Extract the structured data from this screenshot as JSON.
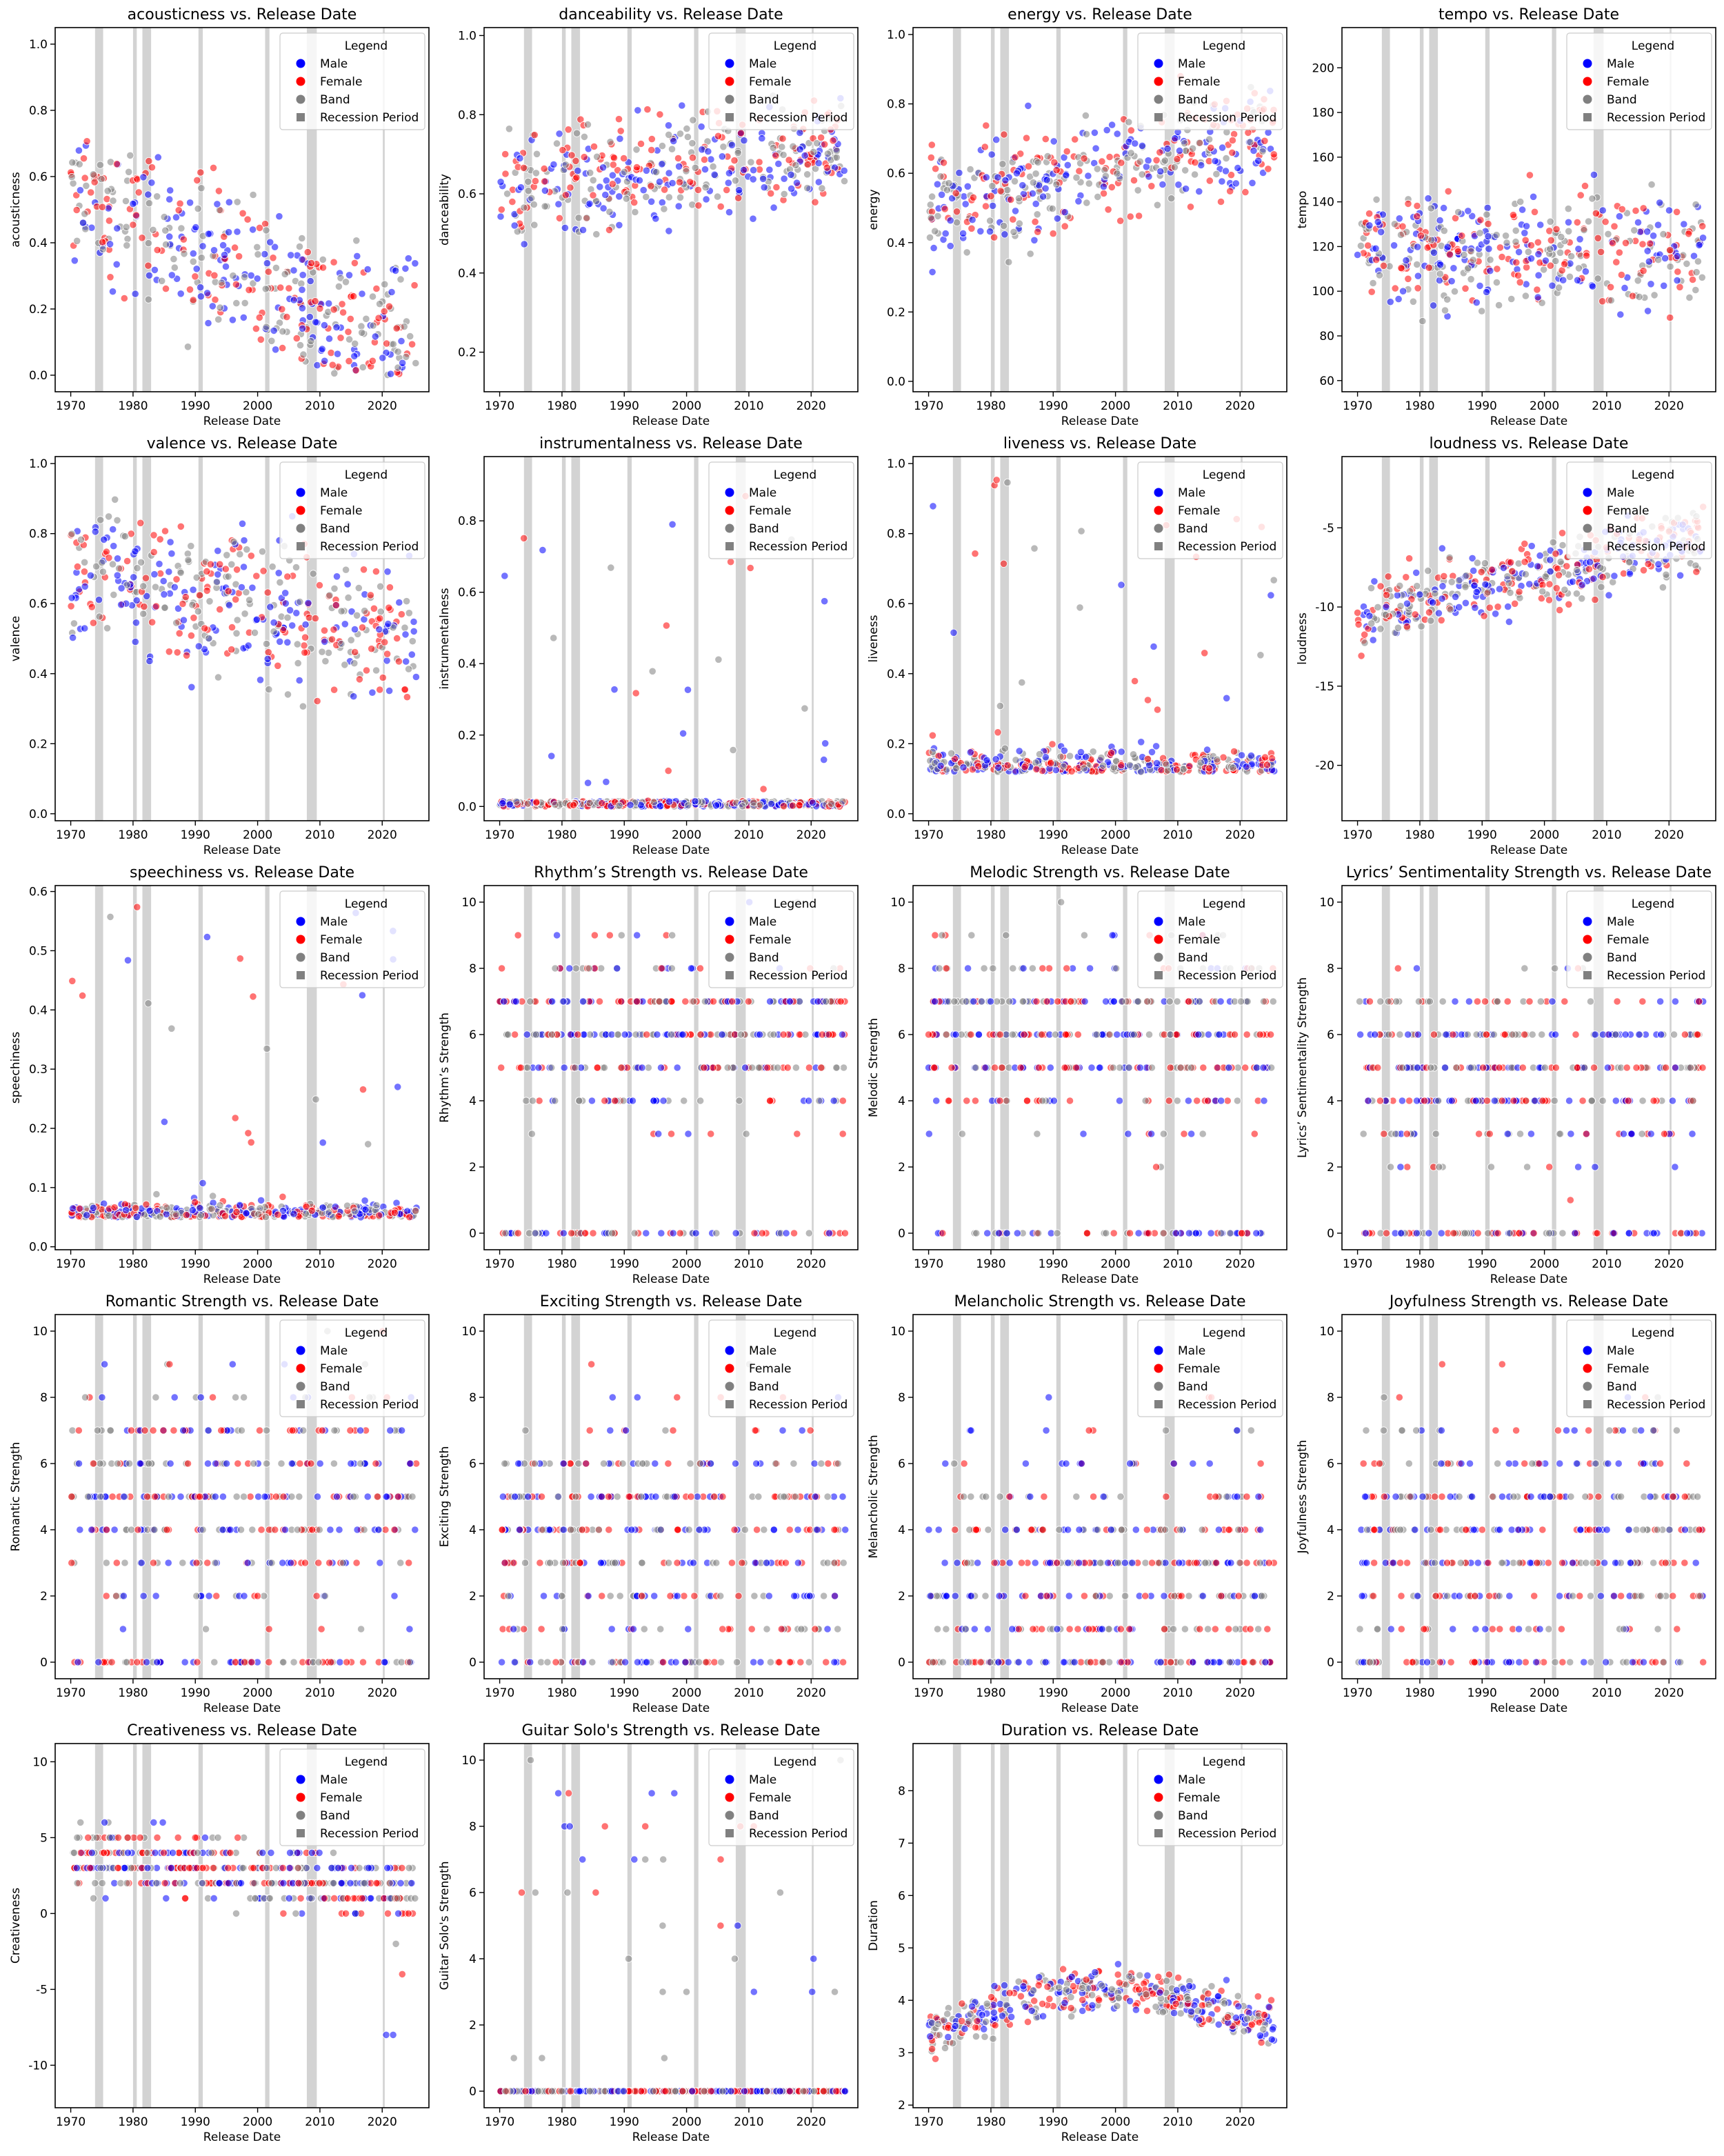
{
  "legend": {
    "title": "Legend",
    "entries": [
      {
        "label": "Male",
        "color": "#0000ff",
        "marker": "circle"
      },
      {
        "label": "Female",
        "color": "#ff0000",
        "marker": "circle"
      },
      {
        "label": "Band",
        "color": "#808080",
        "marker": "circle"
      },
      {
        "label": "Recession Period",
        "color": "#808080",
        "marker": "square"
      }
    ],
    "placement": "top-right"
  },
  "series_colors": {
    "Male": "#0000ff",
    "Female": "#ff0000",
    "Band": "#808080"
  },
  "recession_periods": [
    [
      1973.9,
      1975.2
    ],
    [
      1980.0,
      1980.6
    ],
    [
      1981.5,
      1982.9
    ],
    [
      1990.5,
      1991.2
    ],
    [
      2001.2,
      2001.9
    ],
    [
      2007.9,
      2009.5
    ],
    [
      2020.1,
      2020.4
    ]
  ],
  "chart_data": [
    {
      "type": "scatter",
      "title": "acousticness vs. Release Date",
      "xlabel": "Release Date",
      "ylabel": "acousticness",
      "xlim": [
        1967.5,
        2027.5
      ],
      "ylim": [
        -0.05,
        1.05
      ],
      "xticks": [
        1970,
        1980,
        1990,
        2000,
        2010,
        2020
      ],
      "yticks": [
        0.0,
        0.2,
        0.4,
        0.6,
        0.8,
        1.0
      ],
      "tick_decimals": 1,
      "series": [
        "Male",
        "Female",
        "Band"
      ],
      "profile": {
        "kind": "decay",
        "hi": 0.55,
        "lo": 0.08,
        "min": 0.0,
        "max": 0.99,
        "spread": 0.25
      }
    },
    {
      "type": "scatter",
      "title": "danceability vs. Release Date",
      "xlabel": "Release Date",
      "ylabel": "danceability",
      "xlim": [
        1967.5,
        2027.5
      ],
      "ylim": [
        0.1,
        1.02
      ],
      "xticks": [
        1970,
        1980,
        1990,
        2000,
        2010,
        2020
      ],
      "yticks": [
        0.2,
        0.4,
        0.6,
        0.8,
        1.0
      ],
      "tick_decimals": 1,
      "series": [
        "Male",
        "Female",
        "Band"
      ],
      "profile": {
        "kind": "rise",
        "hi": 0.72,
        "lo": 0.6,
        "min": 0.15,
        "max": 0.98,
        "spread": 0.14
      }
    },
    {
      "type": "scatter",
      "title": "energy vs. Release Date",
      "xlabel": "Release Date",
      "ylabel": "energy",
      "xlim": [
        1967.5,
        2027.5
      ],
      "ylim": [
        -0.03,
        1.02
      ],
      "xticks": [
        1970,
        1980,
        1990,
        2000,
        2010,
        2020
      ],
      "yticks": [
        0.0,
        0.2,
        0.4,
        0.6,
        0.8,
        1.0
      ],
      "tick_decimals": 1,
      "series": [
        "Male",
        "Female",
        "Band"
      ],
      "profile": {
        "kind": "rise",
        "hi": 0.72,
        "lo": 0.5,
        "min": 0.02,
        "max": 0.98,
        "spread": 0.17
      }
    },
    {
      "type": "scatter",
      "title": "tempo vs. Release Date",
      "xlabel": "Release Date",
      "ylabel": "tempo",
      "xlim": [
        1967.5,
        2027.5
      ],
      "ylim": [
        55,
        218
      ],
      "xticks": [
        1970,
        1980,
        1990,
        2000,
        2010,
        2020
      ],
      "yticks": [
        60,
        80,
        100,
        120,
        140,
        160,
        180,
        200
      ],
      "tick_decimals": 0,
      "series": [
        "Male",
        "Female",
        "Band"
      ],
      "profile": {
        "kind": "flat",
        "hi": 118,
        "lo": 118,
        "min": 62,
        "max": 210,
        "spread": 26
      }
    },
    {
      "type": "scatter",
      "title": "valence vs. Release Date",
      "xlabel": "Release Date",
      "ylabel": "valence",
      "xlim": [
        1967.5,
        2027.5
      ],
      "ylim": [
        -0.02,
        1.02
      ],
      "xticks": [
        1970,
        1980,
        1990,
        2000,
        2010,
        2020
      ],
      "yticks": [
        0.0,
        0.2,
        0.4,
        0.6,
        0.8,
        1.0
      ],
      "tick_decimals": 1,
      "series": [
        "Male",
        "Female",
        "Band"
      ],
      "profile": {
        "kind": "decay",
        "hi": 0.7,
        "lo": 0.5,
        "min": 0.03,
        "max": 0.98,
        "spread": 0.22
      }
    },
    {
      "type": "scatter",
      "title": "instrumentalness vs. Release Date",
      "xlabel": "Release Date",
      "ylabel": "instrumentalness",
      "xlim": [
        1967.5,
        2027.5
      ],
      "ylim": [
        -0.04,
        0.98
      ],
      "xticks": [
        1970,
        1980,
        1990,
        2000,
        2010,
        2020
      ],
      "yticks": [
        0.0,
        0.2,
        0.4,
        0.6,
        0.8
      ],
      "tick_decimals": 1,
      "series": [
        "Male",
        "Female",
        "Band"
      ],
      "profile": {
        "kind": "sparse",
        "hi": 0.0,
        "lo": 0.0,
        "min": 0.0,
        "max": 0.93,
        "spread": 0.02
      }
    },
    {
      "type": "scatter",
      "title": "liveness vs. Release Date",
      "xlabel": "Release Date",
      "ylabel": "liveness",
      "xlim": [
        1967.5,
        2027.5
      ],
      "ylim": [
        -0.02,
        1.02
      ],
      "xticks": [
        1970,
        1980,
        1990,
        2000,
        2010,
        2020
      ],
      "yticks": [
        0.0,
        0.2,
        0.4,
        0.6,
        0.8,
        1.0
      ],
      "tick_decimals": 1,
      "series": [
        "Male",
        "Female",
        "Band"
      ],
      "profile": {
        "kind": "low",
        "hi": 0.12,
        "lo": 0.12,
        "min": 0.02,
        "max": 0.96,
        "spread": 0.07
      }
    },
    {
      "type": "scatter",
      "title": "loudness vs. Release Date",
      "xlabel": "Release Date",
      "ylabel": "loudness",
      "xlim": [
        1967.5,
        2027.5
      ],
      "ylim": [
        -23.5,
        -0.5
      ],
      "xticks": [
        1970,
        1980,
        1990,
        2000,
        2010,
        2020
      ],
      "yticks": [
        -20,
        -15,
        -10,
        -5
      ],
      "tick_decimals": 0,
      "series": [
        "Male",
        "Female",
        "Band"
      ],
      "profile": {
        "kind": "rise",
        "hi": -5.5,
        "lo": -10.5,
        "min": -22.5,
        "max": -2.0,
        "spread": 2.4
      }
    },
    {
      "type": "scatter",
      "title": "speechiness vs. Release Date",
      "xlabel": "Release Date",
      "ylabel": "speechiness",
      "xlim": [
        1967.5,
        2027.5
      ],
      "ylim": [
        -0.005,
        0.61
      ],
      "xticks": [
        1970,
        1980,
        1990,
        2000,
        2010,
        2020
      ],
      "yticks": [
        0.0,
        0.1,
        0.2,
        0.3,
        0.4,
        0.5,
        0.6
      ],
      "tick_decimals": 1,
      "series": [
        "Male",
        "Female",
        "Band"
      ],
      "profile": {
        "kind": "low",
        "hi": 0.05,
        "lo": 0.05,
        "min": 0.02,
        "max": 0.58,
        "spread": 0.03
      }
    },
    {
      "type": "scatter",
      "title": "Rhythm’s Strength vs. Release Date",
      "xlabel": "Release Date",
      "ylabel": "Rhythm’s Strength",
      "xlim": [
        1967.5,
        2027.5
      ],
      "ylim": [
        -0.5,
        10.5
      ],
      "xticks": [
        1970,
        1980,
        1990,
        2000,
        2010,
        2020
      ],
      "yticks": [
        0,
        2,
        4,
        6,
        8,
        10
      ],
      "tick_decimals": 0,
      "series": [
        "Male",
        "Female",
        "Band"
      ],
      "profile": {
        "kind": "int",
        "hi": 6,
        "lo": 6,
        "min": 0,
        "max": 10,
        "spread": 3
      }
    },
    {
      "type": "scatter",
      "title": "Melodic Strength vs. Release Date",
      "xlabel": "Release Date",
      "ylabel": "Melodic Strength",
      "xlim": [
        1967.5,
        2027.5
      ],
      "ylim": [
        -0.5,
        10.5
      ],
      "xticks": [
        1970,
        1980,
        1990,
        2000,
        2010,
        2020
      ],
      "yticks": [
        0,
        2,
        4,
        6,
        8,
        10
      ],
      "tick_decimals": 0,
      "series": [
        "Male",
        "Female",
        "Band"
      ],
      "profile": {
        "kind": "int",
        "hi": 6,
        "lo": 6,
        "min": 0,
        "max": 10,
        "spread": 3
      }
    },
    {
      "type": "scatter",
      "title": "Lyrics’ Sentimentality Strength vs. Release Date",
      "xlabel": "Release Date",
      "ylabel": "Lyrics’ Sentimentality Strength",
      "xlim": [
        1967.5,
        2027.5
      ],
      "ylim": [
        -0.5,
        10.5
      ],
      "xticks": [
        1970,
        1980,
        1990,
        2000,
        2010,
        2020
      ],
      "yticks": [
        0,
        2,
        4,
        6,
        8,
        10
      ],
      "tick_decimals": 0,
      "series": [
        "Male",
        "Female",
        "Band"
      ],
      "profile": {
        "kind": "int",
        "hi": 5,
        "lo": 5,
        "min": 0,
        "max": 10,
        "spread": 3
      }
    },
    {
      "type": "scatter",
      "title": "Romantic Strength vs. Release Date",
      "xlabel": "Release Date",
      "ylabel": "Romantic Strength",
      "xlim": [
        1967.5,
        2027.5
      ],
      "ylim": [
        -0.5,
        10.5
      ],
      "xticks": [
        1970,
        1980,
        1990,
        2000,
        2010,
        2020
      ],
      "yticks": [
        0,
        2,
        4,
        6,
        8,
        10
      ],
      "tick_decimals": 0,
      "series": [
        "Male",
        "Female",
        "Band"
      ],
      "profile": {
        "kind": "int",
        "hi": 5,
        "lo": 5,
        "min": 0,
        "max": 10,
        "spread": 4
      }
    },
    {
      "type": "scatter",
      "title": "Exciting Strength vs. Release Date",
      "xlabel": "Release Date",
      "ylabel": "Exciting Strength",
      "xlim": [
        1967.5,
        2027.5
      ],
      "ylim": [
        -0.5,
        10.5
      ],
      "xticks": [
        1970,
        1980,
        1990,
        2000,
        2010,
        2020
      ],
      "yticks": [
        0,
        2,
        4,
        6,
        8,
        10
      ],
      "tick_decimals": 0,
      "series": [
        "Male",
        "Female",
        "Band"
      ],
      "profile": {
        "kind": "int",
        "hi": 4,
        "lo": 4,
        "min": 0,
        "max": 10,
        "spread": 4
      }
    },
    {
      "type": "scatter",
      "title": "Melancholic Strength vs. Release Date",
      "xlabel": "Release Date",
      "ylabel": "Melancholic Strength",
      "xlim": [
        1967.5,
        2027.5
      ],
      "ylim": [
        -0.5,
        10.5
      ],
      "xticks": [
        1970,
        1980,
        1990,
        2000,
        2010,
        2020
      ],
      "yticks": [
        0,
        2,
        4,
        6,
        8,
        10
      ],
      "tick_decimals": 0,
      "series": [
        "Male",
        "Female",
        "Band"
      ],
      "profile": {
        "kind": "int",
        "hi": 3,
        "lo": 3,
        "min": 0,
        "max": 10,
        "spread": 4
      }
    },
    {
      "type": "scatter",
      "title": "Joyfulness Strength vs. Release Date",
      "xlabel": "Release Date",
      "ylabel": "Joyfulness Strength",
      "xlim": [
        1967.5,
        2027.5
      ],
      "ylim": [
        -0.5,
        10.5
      ],
      "xticks": [
        1970,
        1980,
        1990,
        2000,
        2010,
        2020
      ],
      "yticks": [
        0,
        2,
        4,
        6,
        8,
        10
      ],
      "tick_decimals": 0,
      "series": [
        "Male",
        "Female",
        "Band"
      ],
      "profile": {
        "kind": "int",
        "hi": 4,
        "lo": 4,
        "min": 0,
        "max": 10,
        "spread": 4
      }
    },
    {
      "type": "scatter",
      "title": "Creativeness vs. Release Date",
      "xlabel": "Release Date",
      "ylabel": "Creativeness",
      "xlim": [
        1967.5,
        2027.5
      ],
      "ylim": [
        -12.8,
        11.2
      ],
      "xticks": [
        1970,
        1980,
        1990,
        2000,
        2010,
        2020
      ],
      "yticks": [
        -10,
        -5,
        0,
        5,
        10
      ],
      "tick_decimals": 0,
      "series": [
        "Male",
        "Female",
        "Band"
      ],
      "profile": {
        "kind": "intdecay",
        "hi": 4,
        "lo": 1.5,
        "min": -10,
        "max": 10,
        "spread": 2.5
      }
    },
    {
      "type": "scatter",
      "title": "Guitar Solo's Strength vs. Release Date",
      "xlabel": "Release Date",
      "ylabel": "Guitar Solo's Strength",
      "xlim": [
        1967.5,
        2027.5
      ],
      "ylim": [
        -0.5,
        10.5
      ],
      "xticks": [
        1970,
        1980,
        1990,
        2000,
        2010,
        2020
      ],
      "yticks": [
        0,
        2,
        4,
        6,
        8,
        10
      ],
      "tick_decimals": 0,
      "series": [
        "Male",
        "Female",
        "Band"
      ],
      "profile": {
        "kind": "intsparse",
        "hi": 0,
        "lo": 0,
        "min": 0,
        "max": 10,
        "spread": 0
      }
    },
    {
      "type": "scatter",
      "title": "Duration vs. Release Date",
      "xlabel": "Release Date",
      "ylabel": "Duration",
      "xlim": [
        1967.5,
        2027.5
      ],
      "ylim": [
        1.95,
        8.9
      ],
      "xticks": [
        1970,
        1980,
        1990,
        2000,
        2010,
        2020
      ],
      "yticks": [
        2,
        3,
        4,
        5,
        6,
        7,
        8
      ],
      "tick_decimals": 0,
      "series": [
        "Male",
        "Female",
        "Band"
      ],
      "profile": {
        "kind": "hump",
        "hi": 4.2,
        "lo": 3.4,
        "min": 2.3,
        "max": 8.6,
        "spread": 0.45
      }
    }
  ]
}
